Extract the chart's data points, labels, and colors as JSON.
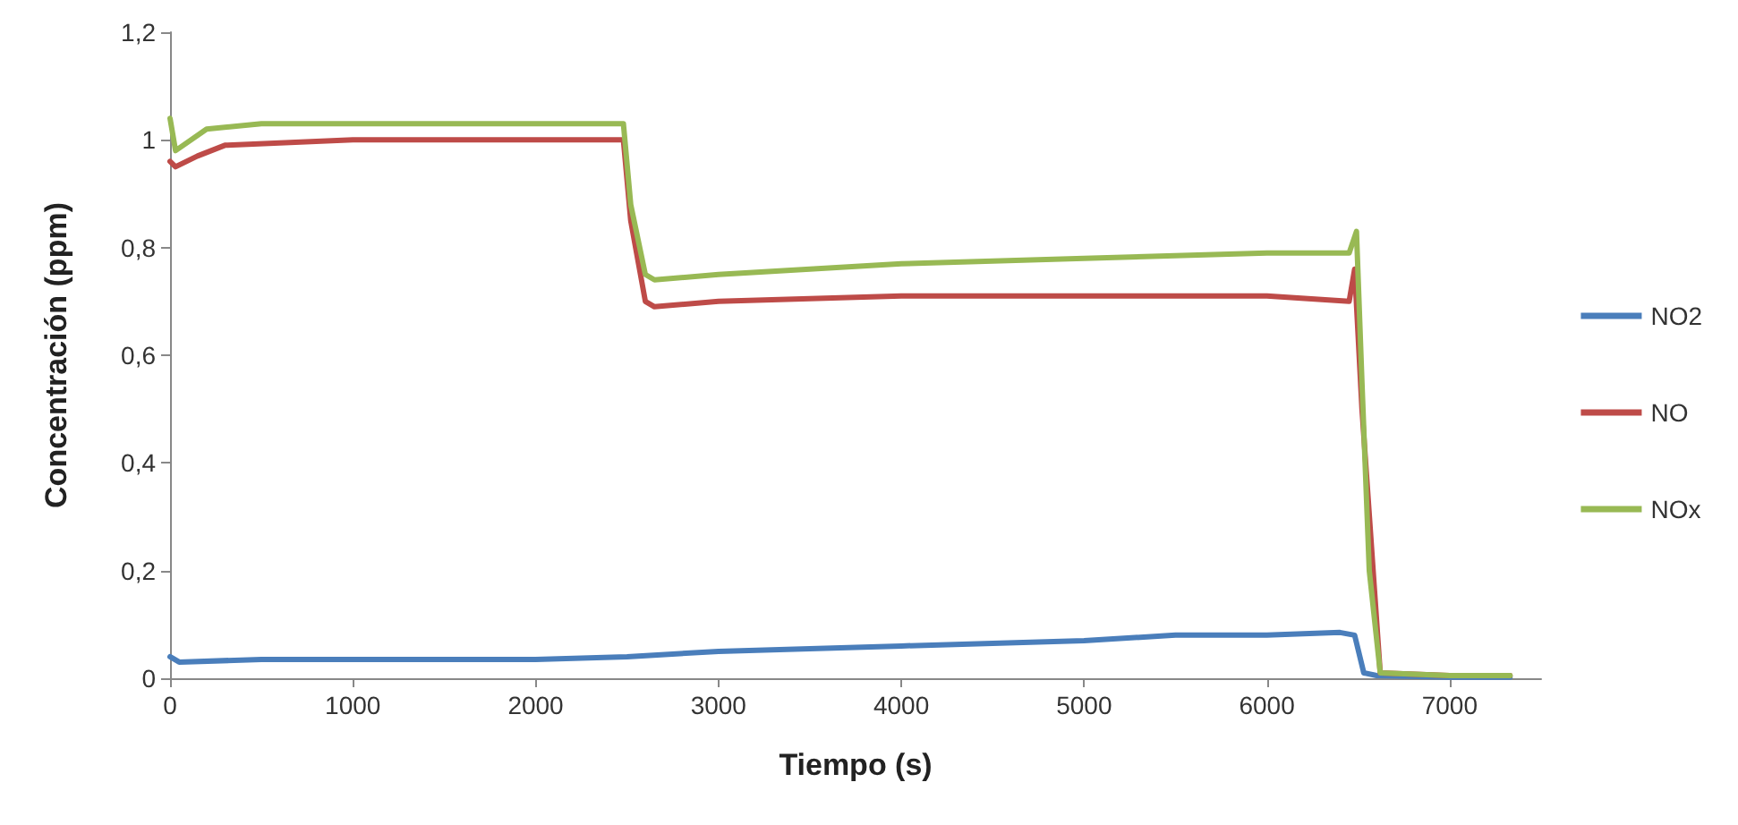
{
  "chart_data": {
    "type": "line",
    "xlabel": "Tiempo (s)",
    "ylabel": "Concentración (ppm)",
    "xlim": [
      0,
      7500
    ],
    "xticks": [
      0,
      1000,
      2000,
      3000,
      4000,
      5000,
      6000,
      7000
    ],
    "ylim": [
      0,
      1.2
    ],
    "yticks": [
      {
        "value": 0,
        "label": "0"
      },
      {
        "value": 0.2,
        "label": "0,2"
      },
      {
        "value": 0.4,
        "label": "0,4"
      },
      {
        "value": 0.6,
        "label": "0,6"
      },
      {
        "value": 0.8,
        "label": "0,8"
      },
      {
        "value": 1,
        "label": "1"
      },
      {
        "value": 1.2,
        "label": "1,2"
      }
    ],
    "grid": false,
    "legend": "right",
    "marker": "none",
    "line_style": "solid",
    "series": [
      {
        "name": "NO2",
        "color": "#4a7ebb",
        "x": [
          0,
          50,
          500,
          1000,
          1500,
          2000,
          2500,
          3000,
          3500,
          4000,
          4500,
          5000,
          5500,
          6000,
          6400,
          6480,
          6530,
          6600,
          7000,
          7330
        ],
        "values": [
          0.04,
          0.03,
          0.035,
          0.035,
          0.035,
          0.035,
          0.04,
          0.05,
          0.055,
          0.06,
          0.065,
          0.07,
          0.08,
          0.08,
          0.085,
          0.08,
          0.01,
          0.005,
          0.002,
          0.002
        ]
      },
      {
        "name": "NO",
        "color": "#be4b48",
        "x": [
          0,
          30,
          150,
          300,
          1000,
          2000,
          2480,
          2520,
          2600,
          2650,
          3000,
          4000,
          5000,
          6000,
          6450,
          6480,
          6520,
          6620,
          7000,
          7330
        ],
        "values": [
          0.96,
          0.95,
          0.97,
          0.99,
          1.0,
          1.0,
          1.0,
          0.85,
          0.7,
          0.69,
          0.7,
          0.71,
          0.71,
          0.71,
          0.7,
          0.76,
          0.5,
          0.01,
          0.005,
          0.005
        ]
      },
      {
        "name": "NOx",
        "color": "#98b954",
        "x": [
          0,
          30,
          200,
          500,
          1000,
          2000,
          2480,
          2520,
          2600,
          2650,
          3000,
          4000,
          5000,
          6000,
          6450,
          6490,
          6520,
          6560,
          6620,
          7000,
          7330
        ],
        "values": [
          1.04,
          0.98,
          1.02,
          1.03,
          1.03,
          1.03,
          1.03,
          0.88,
          0.75,
          0.74,
          0.75,
          0.77,
          0.78,
          0.79,
          0.79,
          0.83,
          0.55,
          0.2,
          0.01,
          0.005,
          0.005
        ]
      }
    ]
  }
}
